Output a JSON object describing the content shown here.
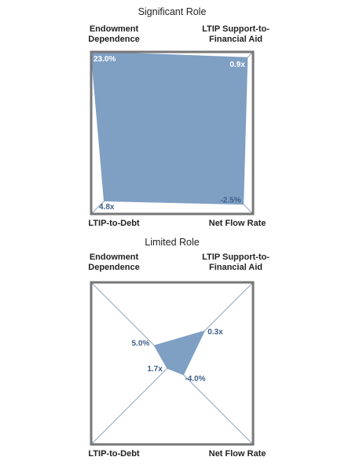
{
  "colors": {
    "fill": "#7f9fc3",
    "frame": "#777777",
    "diagonal": "#8fa4bd",
    "value_text": "#3e5f88"
  },
  "chart_data": [
    {
      "type": "radar",
      "title": "Significant Role",
      "axes": [
        {
          "label_lines": [
            "Endowment",
            "Dependence"
          ],
          "value": 23.0,
          "value_label": "23.0%"
        },
        {
          "label_lines": [
            "LTIP Support-to-",
            "Financial Aid"
          ],
          "value": 0.9,
          "value_label": "0.9x"
        },
        {
          "label_lines": [
            "Net Flow Rate"
          ],
          "value": -2.5,
          "value_label": "-2.5%"
        },
        {
          "label_lines": [
            "LTIP-to-Debt"
          ],
          "value": 4.8,
          "value_label": "4.8x"
        }
      ],
      "normalized": [
        1.0,
        0.93,
        0.88,
        0.84
      ]
    },
    {
      "type": "radar",
      "title": "Limited Role",
      "axes": [
        {
          "label_lines": [
            "Endowment",
            "Dependence"
          ],
          "value": 5.0,
          "value_label": "5.0%"
        },
        {
          "label_lines": [
            "LTIP Support-to-",
            "Financial Aid"
          ],
          "value": 0.3,
          "value_label": "0.3x"
        },
        {
          "label_lines": [
            "Net Flow Rate"
          ],
          "value": -4.0,
          "value_label": "-4.0%"
        },
        {
          "label_lines": [
            "LTIP-to-Debt"
          ],
          "value": 1.7,
          "value_label": "1.7x"
        }
      ],
      "normalized": [
        0.22,
        0.4,
        0.14,
        0.06
      ]
    }
  ]
}
